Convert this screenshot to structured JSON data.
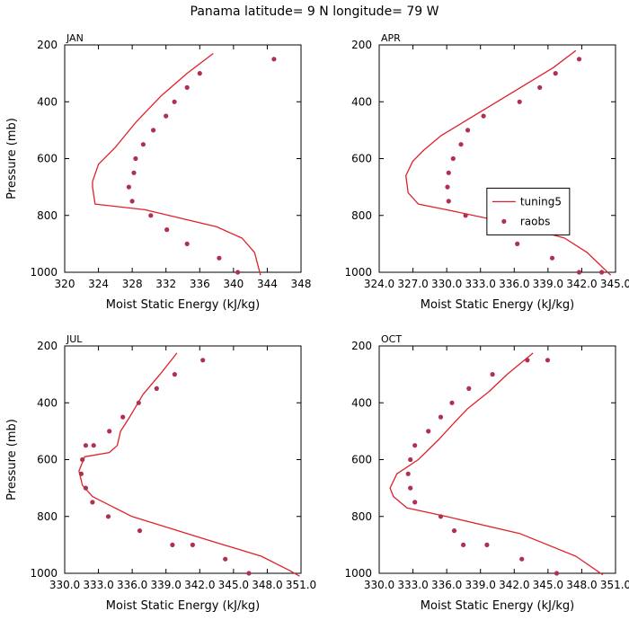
{
  "page": {
    "title": "Panama  latitude= 9 N longitude= 79 W"
  },
  "colors": {
    "line": "#e0202a",
    "points": "#b03050",
    "axis": "#000000"
  },
  "chart_data": [
    {
      "type": "line",
      "panel": "JAN",
      "title": "JAN",
      "xlabel": "Moist Static Energy (kJ/kg)",
      "ylabel": "Pressure (mb)",
      "xlim": [
        320,
        348
      ],
      "ylim": [
        1000,
        200
      ],
      "y_inverted": true,
      "xticks": [
        320,
        324,
        328,
        332,
        336,
        340,
        344,
        348
      ],
      "xtick_labels": [
        "320",
        "324",
        "328",
        "332",
        "336",
        "340",
        "344",
        "348"
      ],
      "yticks": [
        200,
        400,
        600,
        800,
        1000
      ],
      "ytick_labels": [
        "200",
        "400",
        "600",
        "800",
        "1000"
      ],
      "series": [
        {
          "name": "tuning5",
          "style": "line",
          "x": [
            337.6,
            334.5,
            331.4,
            328.5,
            326.0,
            324.0,
            323.3,
            323.3,
            323.6,
            329.5,
            338.0,
            341.0,
            342.5,
            343.2
          ],
          "y": [
            230,
            300,
            380,
            470,
            560,
            620,
            680,
            700,
            760,
            780,
            840,
            880,
            930,
            1010
          ]
        },
        {
          "name": "raobs",
          "style": "points",
          "x": [
            344.8,
            336.0,
            334.5,
            333.0,
            332.0,
            330.5,
            329.3,
            328.4,
            328.2,
            327.6,
            328.0,
            330.2,
            332.1,
            334.5,
            338.3,
            340.5
          ],
          "y": [
            250,
            300,
            350,
            400,
            450,
            500,
            550,
            600,
            650,
            700,
            750,
            800,
            850,
            900,
            950,
            1000
          ]
        }
      ]
    },
    {
      "type": "line",
      "panel": "APR",
      "title": "APR",
      "xlabel": "Moist Static Energy (kJ/kg)",
      "ylabel": "",
      "xlim": [
        324.03,
        345.03
      ],
      "ylim": [
        1000,
        200
      ],
      "y_inverted": true,
      "xticks": [
        324.03,
        327.03,
        330.03,
        333.03,
        336.03,
        339.03,
        342.03,
        345.03
      ],
      "xtick_labels": [
        "324.0",
        "327.0",
        "330.0",
        "333.0",
        "336.0",
        "339.0",
        "342.0",
        "345.0"
      ],
      "yticks": [
        200,
        400,
        600,
        800,
        1000
      ],
      "ytick_labels": [
        "200",
        "400",
        "600",
        "800",
        "1000"
      ],
      "legend": {
        "position": "right",
        "entries": [
          "tuning5",
          "raobs"
        ]
      },
      "series": [
        {
          "name": "tuning5",
          "style": "line",
          "x": [
            341.5,
            339.5,
            337.0,
            334.5,
            332.0,
            329.5,
            328.0,
            327.0,
            326.4,
            326.6,
            327.5,
            330.0,
            336.0,
            340.5,
            342.5,
            344.6
          ],
          "y": [
            220,
            280,
            340,
            400,
            460,
            520,
            570,
            610,
            660,
            720,
            760,
            780,
            830,
            880,
            930,
            1010
          ]
        },
        {
          "name": "raobs",
          "style": "points",
          "x": [
            341.8,
            339.7,
            338.3,
            336.5,
            333.3,
            331.9,
            331.3,
            330.6,
            330.2,
            330.1,
            330.2,
            331.7,
            334.0,
            336.3,
            339.4,
            341.8,
            343.8
          ],
          "y": [
            250,
            300,
            350,
            400,
            450,
            500,
            550,
            600,
            650,
            700,
            750,
            800,
            850,
            900,
            950,
            1000,
            1000
          ]
        }
      ]
    },
    {
      "type": "line",
      "panel": "JUL",
      "title": "JUL",
      "xlabel": "Moist Static Energy (kJ/kg)",
      "ylabel": "Pressure (mb)",
      "xlim": [
        330.03,
        351.03
      ],
      "ylim": [
        1000,
        200
      ],
      "y_inverted": true,
      "xticks": [
        330.03,
        333.03,
        336.03,
        339.03,
        342.03,
        345.03,
        348.03,
        351.03
      ],
      "xtick_labels": [
        "330.0",
        "333.0",
        "336.0",
        "339.0",
        "342.0",
        "345.0",
        "348.0",
        "351.0"
      ],
      "yticks": [
        200,
        400,
        600,
        800,
        1000
      ],
      "ytick_labels": [
        "200",
        "400",
        "600",
        "800",
        "1000"
      ],
      "series": [
        {
          "name": "tuning5",
          "style": "line",
          "x": [
            340.0,
            338.5,
            337.0,
            335.8,
            335.0,
            334.7,
            334.0,
            331.8,
            331.3,
            331.6,
            332.5,
            336.0,
            342.5,
            347.5,
            350.0,
            350.9
          ],
          "y": [
            225,
            300,
            370,
            450,
            500,
            550,
            575,
            590,
            640,
            690,
            730,
            800,
            880,
            940,
            990,
            1010
          ]
        },
        {
          "name": "raobs",
          "style": "points",
          "x": [
            342.3,
            339.8,
            338.2,
            336.6,
            335.2,
            334.0,
            332.6,
            331.9,
            331.6,
            331.5,
            331.9,
            332.5,
            333.9,
            336.7,
            339.6,
            341.4,
            344.3,
            346.4
          ],
          "y": [
            250,
            300,
            350,
            400,
            450,
            500,
            550,
            550,
            600,
            650,
            700,
            750,
            800,
            850,
            900,
            900,
            950,
            1000
          ]
        }
      ]
    },
    {
      "type": "line",
      "panel": "OCT",
      "title": "OCT",
      "xlabel": "Moist Static Energy (kJ/kg)",
      "ylabel": "",
      "xlim": [
        330.03,
        351.03
      ],
      "ylim": [
        1000,
        200
      ],
      "y_inverted": true,
      "xticks": [
        330.03,
        333.03,
        336.03,
        339.03,
        342.03,
        345.03,
        348.03,
        351.03
      ],
      "xtick_labels": [
        "330.0",
        "333.0",
        "336.0",
        "339.0",
        "342.0",
        "345.0",
        "348.0",
        "351.0"
      ],
      "yticks": [
        200,
        400,
        600,
        800,
        1000
      ],
      "ytick_labels": [
        "200",
        "400",
        "600",
        "800",
        "1000"
      ],
      "series": [
        {
          "name": "tuning5",
          "style": "line",
          "x": [
            343.7,
            341.4,
            339.8,
            337.9,
            336.7,
            335.3,
            333.5,
            331.6,
            331.0,
            331.3,
            332.5,
            336.0,
            342.5,
            347.5,
            349.9
          ],
          "y": [
            225,
            300,
            360,
            420,
            470,
            530,
            600,
            650,
            700,
            730,
            770,
            800,
            860,
            940,
            1005
          ]
        },
        {
          "name": "raobs",
          "style": "points",
          "x": [
            345.0,
            343.2,
            340.1,
            338.0,
            336.5,
            335.5,
            334.4,
            333.2,
            332.8,
            332.6,
            332.8,
            333.2,
            335.5,
            336.7,
            337.5,
            339.6,
            342.7,
            345.8
          ],
          "y": [
            250,
            250,
            300,
            350,
            400,
            450,
            500,
            550,
            600,
            650,
            700,
            750,
            800,
            850,
            900,
            900,
            950,
            1000
          ]
        }
      ]
    }
  ]
}
